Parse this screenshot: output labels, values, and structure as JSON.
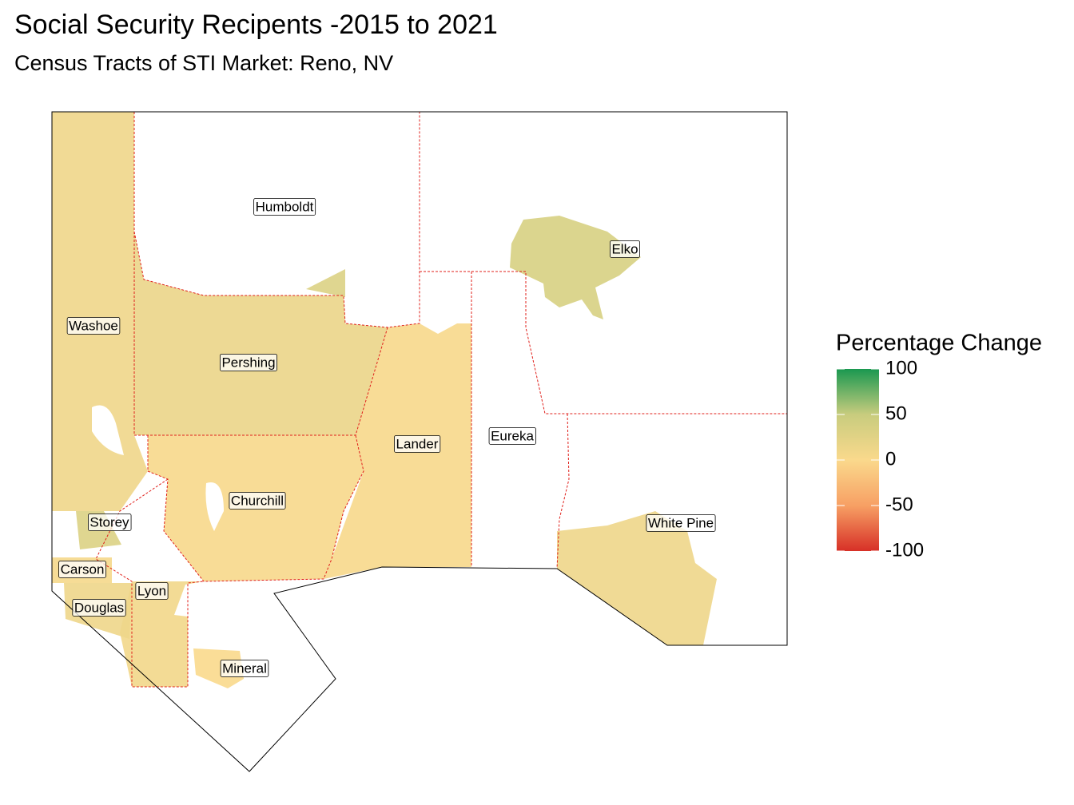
{
  "title": "Social Security Recipents -2015 to 2021",
  "subtitle": "Census Tracts of STI Market: Reno, NV",
  "legend": {
    "title": "Percentage Change",
    "lim": [
      -100,
      100
    ],
    "ticks": [
      100,
      50,
      0,
      -50,
      -100
    ],
    "colors": [
      "#d73027",
      "#f7a064",
      "#fad98c",
      "#c8cc7e",
      "#1a9850"
    ]
  },
  "counties": [
    {
      "name": "Humboldt",
      "value": 30
    },
    {
      "name": "Elko",
      "value": 35
    },
    {
      "name": "Washoe",
      "value": 10
    },
    {
      "name": "Pershing",
      "value": 15
    },
    {
      "name": "Lander",
      "value": 3
    },
    {
      "name": "Eureka",
      "value": null
    },
    {
      "name": "Churchill",
      "value": 3
    },
    {
      "name": "White Pine",
      "value": 12
    },
    {
      "name": "Storey",
      "value": 30
    },
    {
      "name": "Carson",
      "value": 5
    },
    {
      "name": "Lyon",
      "value": 8
    },
    {
      "name": "Douglas",
      "value": 12
    },
    {
      "name": "Mineral",
      "value": 0
    }
  ]
}
